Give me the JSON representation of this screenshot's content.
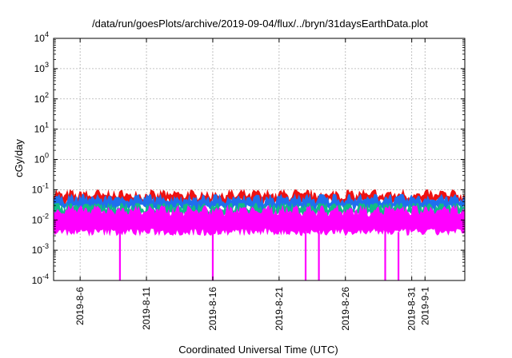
{
  "chart_data": {
    "type": "area",
    "title": "/data/run/goesPlots/archive/2019-09-04/flux/../bryn/31daysEarthData.plot",
    "xlabel": "Coordinated Universal Time (UTC)",
    "ylabel": "cGy/day",
    "y_scale": "log",
    "ylim": [
      0.0001,
      10000
    ],
    "y_ticks": [
      {
        "value": 0.0001,
        "base": "10",
        "exp": "-4"
      },
      {
        "value": 0.001,
        "base": "10",
        "exp": "-3"
      },
      {
        "value": 0.01,
        "base": "10",
        "exp": "-2"
      },
      {
        "value": 0.1,
        "base": "10",
        "exp": "-1"
      },
      {
        "value": 1,
        "base": "10",
        "exp": "0"
      },
      {
        "value": 10,
        "base": "10",
        "exp": "1"
      },
      {
        "value": 100,
        "base": "10",
        "exp": "2"
      },
      {
        "value": 1000,
        "base": "10",
        "exp": "3"
      },
      {
        "value": 10000,
        "base": "10",
        "exp": "4"
      }
    ],
    "xlim": [
      "2019-08-04",
      "2019-09-04"
    ],
    "x_ticks": [
      "2019-8-6",
      "2019-8-11",
      "2019-8-16",
      "2019-8-21",
      "2019-8-26",
      "2019-8-31",
      "2019-9-1"
    ],
    "grid": true,
    "legend": "none",
    "series": [
      {
        "color": "#ee1111",
        "typical": 0.06,
        "max": 0.1,
        "min": 0.04
      },
      {
        "color": "#1f6fee",
        "typical": 0.045,
        "max": 0.07,
        "min": 0.025
      },
      {
        "color": "#11bb88",
        "typical": 0.025,
        "max": 0.035,
        "min": 0.015
      },
      {
        "color": "#ff00ff",
        "typical": 0.018,
        "max": 0.03,
        "min": 0.004
      }
    ],
    "dropouts": [
      {
        "series_color": "#ff00ff",
        "date": "2019-08-09",
        "value": 0.0001
      },
      {
        "series_color": "#ff00ff",
        "date": "2019-08-16",
        "value": 0.0001
      },
      {
        "series_color": "#ff00ff",
        "date": "2019-08-23",
        "value": 0.0001
      },
      {
        "series_color": "#ff00ff",
        "date": "2019-08-24",
        "value": 0.0001
      },
      {
        "series_color": "#ff00ff",
        "date": "2019-08-29",
        "value": 0.0001
      },
      {
        "series_color": "#ff00ff",
        "date": "2019-08-30",
        "value": 0.0001
      }
    ]
  }
}
